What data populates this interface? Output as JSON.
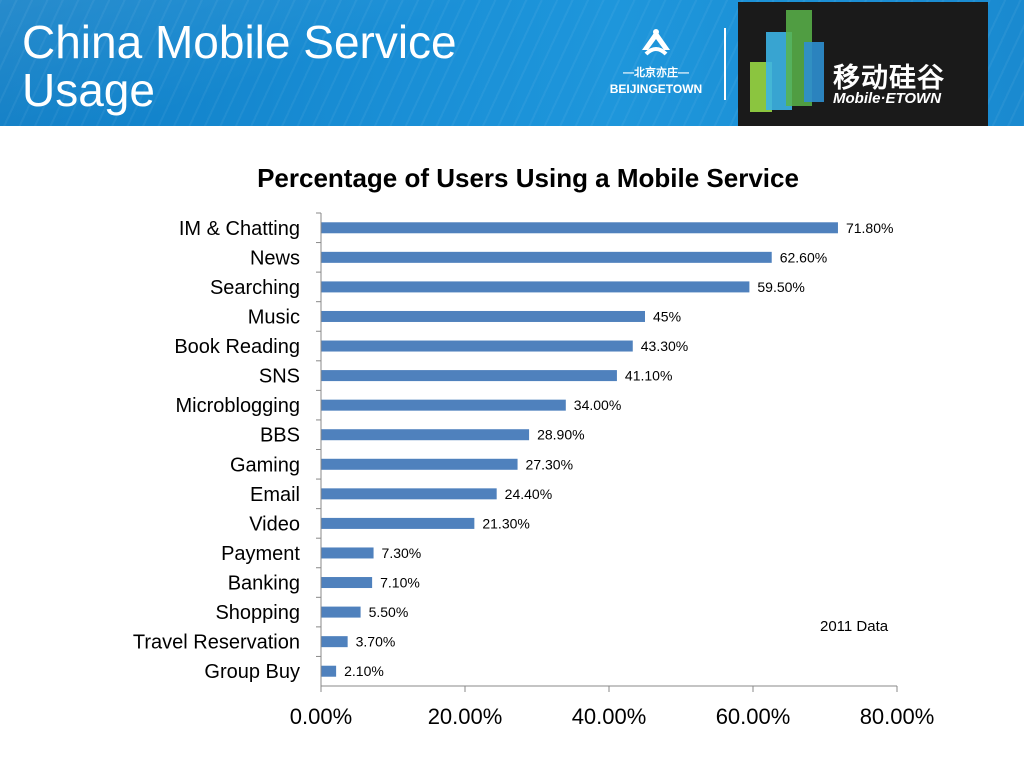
{
  "slide": {
    "title": "China Mobile Service Usage"
  },
  "logos": {
    "left_logo_cn": "—北京亦庄—",
    "left_logo_en": "BEIJINGETOWN",
    "right_logo_cn": "移动硅谷",
    "right_logo_en": "Mobile·ETOWN"
  },
  "note": "2011 Data",
  "colors": {
    "bar": "#4f81bd",
    "header": "#1a8fd6"
  },
  "chart_data": {
    "type": "bar",
    "orientation": "horizontal",
    "title": "Percentage of Users Using a Mobile Service",
    "categories": [
      "IM & Chatting",
      "News",
      "Searching",
      "Music",
      "Book Reading",
      "SNS",
      "Microblogging",
      "BBS",
      "Gaming",
      "Email",
      "Video",
      "Payment",
      "Banking",
      "Shopping",
      "Travel Reservation",
      "Group Buy"
    ],
    "values": [
      71.8,
      62.6,
      59.5,
      45,
      43.3,
      41.1,
      34.0,
      28.9,
      27.3,
      24.4,
      21.3,
      7.3,
      7.1,
      5.5,
      3.7,
      2.1
    ],
    "data_labels": [
      "71.80%",
      "62.60%",
      "59.50%",
      "45%",
      "43.30%",
      "41.10%",
      "34.00%",
      "28.90%",
      "27.30%",
      "24.40%",
      "21.30%",
      "7.30%",
      "7.10%",
      "5.50%",
      "3.70%",
      "2.10%"
    ],
    "xlim": [
      0,
      80
    ],
    "x_ticks": [
      0,
      20,
      40,
      60,
      80
    ],
    "x_tick_labels": [
      "0.00%",
      "20.00%",
      "40.00%",
      "60.00%",
      "80.00%"
    ],
    "xlabel": "",
    "ylabel": "",
    "grid": false,
    "legend": "none"
  }
}
